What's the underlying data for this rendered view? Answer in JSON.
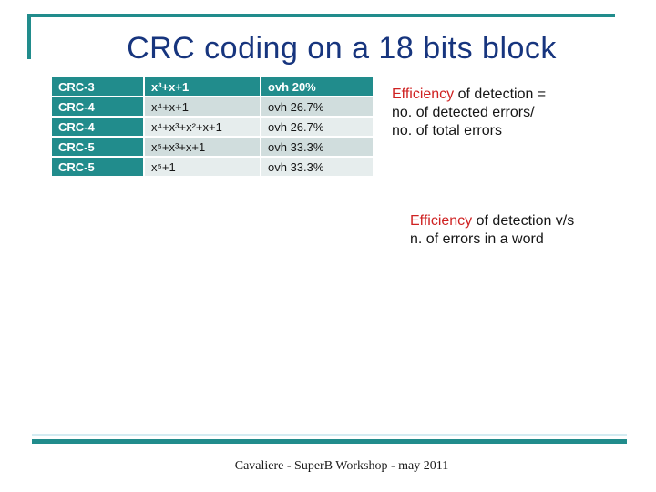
{
  "slide": {
    "title": "CRC coding on a 18 bits block",
    "footer": "Cavaliere - SuperB Workshop - may 2011"
  },
  "table": {
    "rows": [
      {
        "crc": "CRC-3",
        "poly": "x³+x+1",
        "ovh": "ovh 20%"
      },
      {
        "crc": "CRC-4",
        "poly": "x⁴+x+1",
        "ovh": "ovh 26.7%"
      },
      {
        "crc": "CRC-4",
        "poly": "x⁴+x³+x²+x+1",
        "ovh": "ovh 26.7%"
      },
      {
        "crc": "CRC-5",
        "poly": "x⁵+x³+x+1",
        "ovh": "ovh 33.3%"
      },
      {
        "crc": "CRC-5",
        "poly": "x⁵+1",
        "ovh": "ovh 33.3%"
      }
    ]
  },
  "notes": {
    "definition": {
      "highlight": "Efficiency",
      "line1_rest": " of detection =",
      "line2": "no. of detected errors/",
      "line3": "no. of total errors"
    },
    "versus": {
      "highlight": "Efficiency",
      "line1_rest": " of detection v/s",
      "line2": "n. of errors in a word"
    }
  },
  "colors": {
    "teal_accent": "#218c8c",
    "title_navy": "#17357e",
    "highlight_red": "#cf2222",
    "row_shade_dark": "#d0dddd",
    "row_shade_light": "#e6eded",
    "thin_line_blue": "#d4ecf2"
  }
}
